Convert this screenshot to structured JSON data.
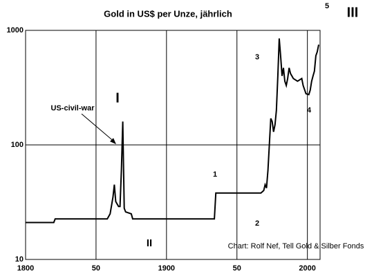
{
  "chart_data": {
    "type": "line",
    "title": "Gold in US$ per Unze, jährlich",
    "log_scale_y": true,
    "grid": true,
    "color": "#000000",
    "xlim": [
      1800,
      2009
    ],
    "ylim": [
      10,
      1000
    ],
    "xticks": [
      1800,
      {
        "value": 1850,
        "label": "50"
      },
      1900,
      {
        "value": 1950,
        "label": "50"
      },
      2000
    ],
    "yticks": [
      10,
      100,
      1000
    ],
    "annotations": [
      "5",
      "III",
      "I",
      "II",
      "1",
      "2",
      "3",
      "4",
      "US-civil-war",
      "Chart: Rolf Nef, Tell Gold & Silber Fonds"
    ],
    "x": [
      1800,
      1820,
      1821,
      1858,
      1860,
      1862,
      1863,
      1864,
      1866,
      1867,
      1868,
      1869,
      1870,
      1871,
      1875,
      1876,
      1934,
      1935,
      1967,
      1969,
      1970,
      1971,
      1972,
      1973,
      1974,
      1975,
      1976,
      1977,
      1978,
      1979,
      1980,
      1981,
      1982,
      1983,
      1984,
      1985,
      1986,
      1987,
      1988,
      1990,
      1993,
      1996,
      1997,
      1999,
      2001,
      2002,
      2003,
      2004,
      2005,
      2006,
      2007,
      2008
    ],
    "values": [
      21,
      21,
      22.6,
      22.6,
      25,
      35,
      45,
      32,
      29,
      29,
      60,
      160,
      28,
      26,
      25,
      22.6,
      22.6,
      38,
      38,
      40,
      45,
      42,
      60,
      100,
      170,
      160,
      130,
      150,
      200,
      400,
      850,
      600,
      400,
      470,
      360,
      330,
      380,
      470,
      420,
      380,
      360,
      380,
      330,
      280,
      275,
      300,
      360,
      400,
      440,
      600,
      650,
      750
    ]
  }
}
